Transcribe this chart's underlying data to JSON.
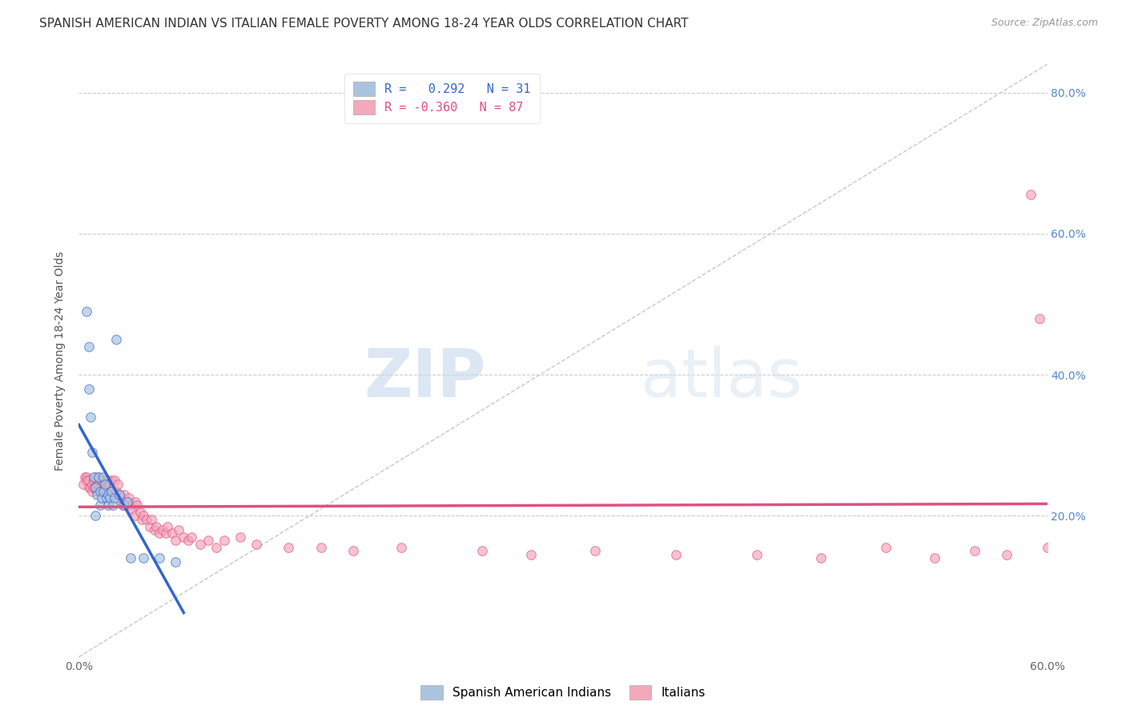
{
  "title": "SPANISH AMERICAN INDIAN VS ITALIAN FEMALE POVERTY AMONG 18-24 YEAR OLDS CORRELATION CHART",
  "source": "Source: ZipAtlas.com",
  "ylabel": "Female Poverty Among 18-24 Year Olds",
  "xlim": [
    0.0,
    0.6
  ],
  "ylim": [
    0.0,
    0.84
  ],
  "xtick_positions": [
    0.0,
    0.1,
    0.2,
    0.3,
    0.4,
    0.5,
    0.6
  ],
  "xtick_labels": [
    "0.0%",
    "",
    "",
    "",
    "",
    "",
    "60.0%"
  ],
  "ytick_positions": [
    0.0,
    0.2,
    0.4,
    0.6,
    0.8
  ],
  "ytick_labels": [
    "",
    "",
    "",
    "",
    ""
  ],
  "right_ytick_positions": [
    0.2,
    0.4,
    0.6,
    0.8
  ],
  "right_ytick_labels": [
    "20.0%",
    "40.0%",
    "60.0%",
    "80.0%"
  ],
  "blue_color": "#aac4e0",
  "blue_line_color": "#3366cc",
  "pink_color": "#f4a8bc",
  "pink_line_color": "#e05080",
  "diag_line_color": "#c8c8c8",
  "legend_label_blue": "Spanish American Indians",
  "legend_label_pink": "Italians",
  "watermark_zip": "ZIP",
  "watermark_atlas": "atlas",
  "blue_scatter_x": [
    0.005,
    0.006,
    0.006,
    0.007,
    0.008,
    0.009,
    0.01,
    0.01,
    0.011,
    0.012,
    0.013,
    0.013,
    0.014,
    0.015,
    0.015,
    0.016,
    0.017,
    0.018,
    0.018,
    0.019,
    0.02,
    0.021,
    0.022,
    0.023,
    0.025,
    0.028,
    0.03,
    0.032,
    0.04,
    0.05,
    0.06
  ],
  "blue_scatter_y": [
    0.49,
    0.44,
    0.38,
    0.34,
    0.29,
    0.255,
    0.24,
    0.2,
    0.23,
    0.255,
    0.235,
    0.215,
    0.225,
    0.255,
    0.235,
    0.245,
    0.225,
    0.23,
    0.215,
    0.225,
    0.235,
    0.215,
    0.225,
    0.45,
    0.23,
    0.215,
    0.22,
    0.14,
    0.14,
    0.14,
    0.135
  ],
  "pink_scatter_x": [
    0.003,
    0.004,
    0.005,
    0.005,
    0.006,
    0.006,
    0.007,
    0.008,
    0.008,
    0.009,
    0.009,
    0.01,
    0.01,
    0.011,
    0.011,
    0.012,
    0.012,
    0.013,
    0.013,
    0.014,
    0.015,
    0.015,
    0.016,
    0.016,
    0.017,
    0.018,
    0.018,
    0.019,
    0.019,
    0.02,
    0.02,
    0.021,
    0.022,
    0.023,
    0.024,
    0.025,
    0.026,
    0.027,
    0.028,
    0.03,
    0.031,
    0.032,
    0.033,
    0.035,
    0.035,
    0.036,
    0.038,
    0.039,
    0.04,
    0.042,
    0.044,
    0.045,
    0.047,
    0.048,
    0.05,
    0.052,
    0.054,
    0.055,
    0.058,
    0.06,
    0.062,
    0.065,
    0.068,
    0.07,
    0.075,
    0.08,
    0.085,
    0.09,
    0.1,
    0.11,
    0.13,
    0.15,
    0.17,
    0.2,
    0.25,
    0.28,
    0.32,
    0.37,
    0.42,
    0.46,
    0.5,
    0.53,
    0.555,
    0.575,
    0.59,
    0.595,
    0.6
  ],
  "pink_scatter_y": [
    0.245,
    0.255,
    0.255,
    0.25,
    0.24,
    0.25,
    0.24,
    0.245,
    0.235,
    0.24,
    0.25,
    0.24,
    0.255,
    0.235,
    0.245,
    0.245,
    0.255,
    0.24,
    0.235,
    0.25,
    0.245,
    0.235,
    0.25,
    0.24,
    0.24,
    0.24,
    0.25,
    0.235,
    0.245,
    0.235,
    0.25,
    0.23,
    0.25,
    0.235,
    0.245,
    0.23,
    0.225,
    0.215,
    0.23,
    0.22,
    0.225,
    0.215,
    0.21,
    0.2,
    0.22,
    0.215,
    0.205,
    0.195,
    0.2,
    0.195,
    0.185,
    0.195,
    0.18,
    0.185,
    0.175,
    0.18,
    0.175,
    0.185,
    0.175,
    0.165,
    0.18,
    0.17,
    0.165,
    0.17,
    0.16,
    0.165,
    0.155,
    0.165,
    0.17,
    0.16,
    0.155,
    0.155,
    0.15,
    0.155,
    0.15,
    0.145,
    0.15,
    0.145,
    0.145,
    0.14,
    0.155,
    0.14,
    0.15,
    0.145,
    0.655,
    0.48,
    0.155
  ],
  "title_fontsize": 11,
  "axis_label_fontsize": 10,
  "tick_fontsize": 10,
  "legend_fontsize": 11,
  "background_color": "#ffffff",
  "grid_color": "#cccccc",
  "marker_size": 70
}
